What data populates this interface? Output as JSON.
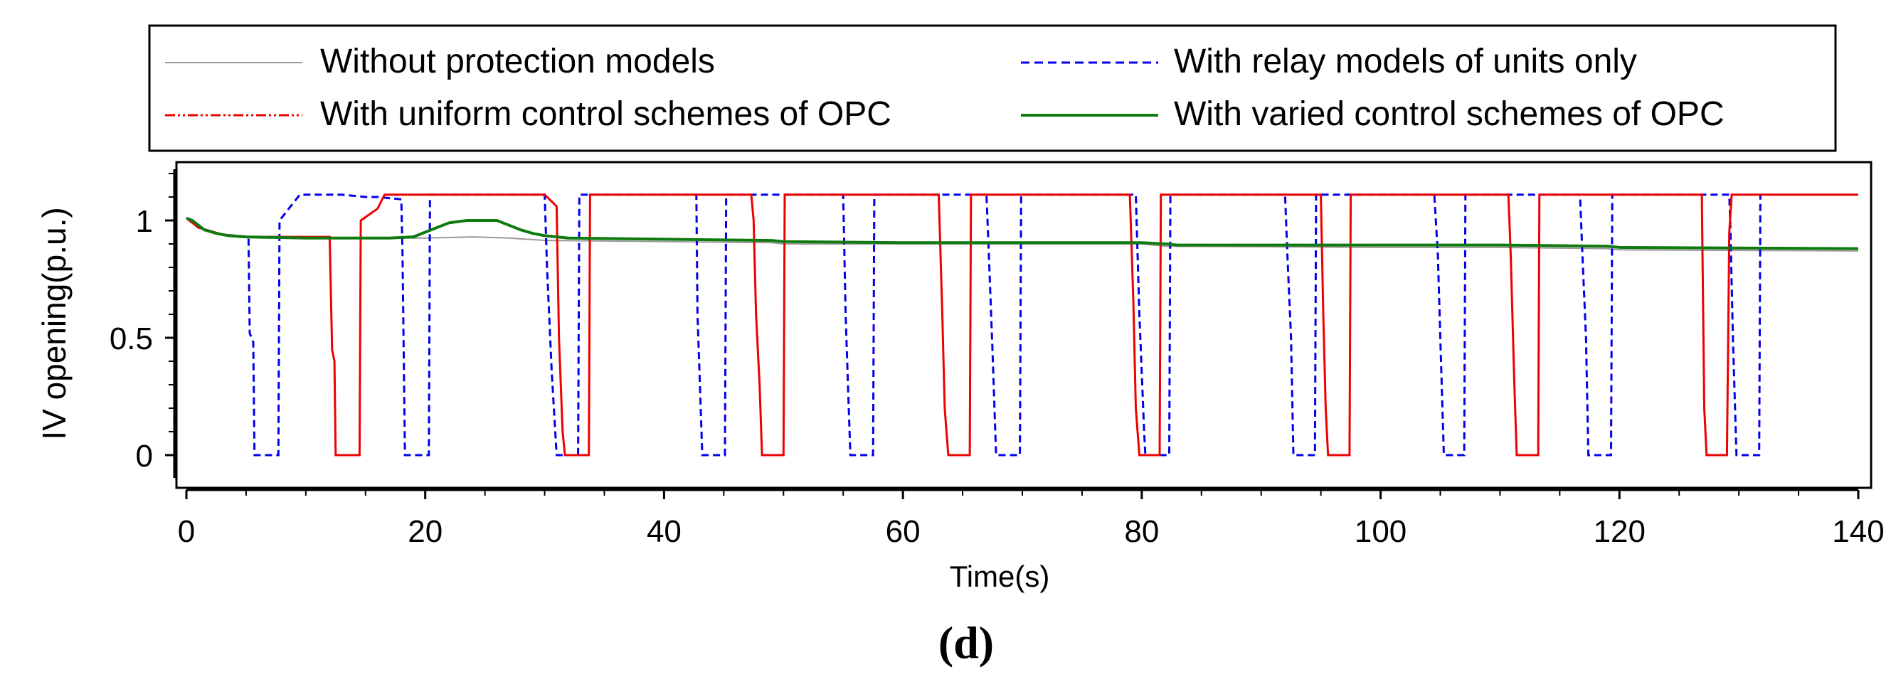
{
  "chart_data": {
    "type": "line",
    "title": "",
    "panel_label": "(d)",
    "xlabel": "Time(s)",
    "ylabel": "IV opening(p.u.)",
    "xlim": [
      0,
      140
    ],
    "ylim": [
      -0.15,
      1.25
    ],
    "xticks": [
      0,
      20,
      40,
      60,
      80,
      100,
      120,
      140
    ],
    "yticks": [
      0,
      0.5,
      1
    ],
    "ytick_labels": [
      "0",
      "0.5",
      "1"
    ],
    "grid": false,
    "legend_position": "top",
    "series": [
      {
        "name": "Without protection models",
        "color": "#9a9a9a",
        "dash": "solid",
        "points": [
          [
            0,
            1.01
          ],
          [
            0.6,
            0.99
          ],
          [
            1.5,
            0.96
          ],
          [
            2.5,
            0.945
          ],
          [
            3.5,
            0.935
          ],
          [
            5,
            0.93
          ],
          [
            12,
            0.925
          ],
          [
            20,
            0.925
          ],
          [
            24,
            0.93
          ],
          [
            27,
            0.925
          ],
          [
            30,
            0.915
          ],
          [
            40,
            0.91
          ],
          [
            49,
            0.905
          ],
          [
            50,
            0.9
          ],
          [
            60,
            0.9
          ],
          [
            70,
            0.9
          ],
          [
            80,
            0.9
          ],
          [
            82,
            0.89
          ],
          [
            100,
            0.885
          ],
          [
            110,
            0.885
          ],
          [
            119,
            0.88
          ],
          [
            120,
            0.875
          ],
          [
            140,
            0.87
          ]
        ]
      },
      {
        "name": "With relay models of units only",
        "color": "#0000ee",
        "dash": "10,6",
        "points": [
          [
            0,
            1.01
          ],
          [
            1,
            0.97
          ],
          [
            3,
            0.94
          ],
          [
            5.2,
            0.93
          ],
          [
            5.3,
            0.52
          ],
          [
            5.6,
            0.48
          ],
          [
            5.7,
            0
          ],
          [
            7.7,
            0
          ],
          [
            7.8,
            1.0
          ],
          [
            9.5,
            1.11
          ],
          [
            13,
            1.11
          ],
          [
            15,
            1.1
          ],
          [
            16,
            1.1
          ],
          [
            18,
            1.09
          ],
          [
            18.1,
            0.85
          ],
          [
            18.3,
            0
          ],
          [
            20.3,
            0
          ],
          [
            20.4,
            1.11
          ],
          [
            30,
            1.11
          ],
          [
            30.2,
            0.8
          ],
          [
            30.6,
            0.35
          ],
          [
            31,
            0
          ],
          [
            32.8,
            0
          ],
          [
            32.9,
            1.11
          ],
          [
            42.7,
            1.11
          ],
          [
            42.8,
            0.6
          ],
          [
            43,
            0.3
          ],
          [
            43.2,
            0
          ],
          [
            45.1,
            0
          ],
          [
            45.2,
            1.11
          ],
          [
            55,
            1.11
          ],
          [
            55.2,
            0.6
          ],
          [
            55.4,
            0.3
          ],
          [
            55.6,
            0
          ],
          [
            57.5,
            0
          ],
          [
            57.6,
            1.11
          ],
          [
            67,
            1.11
          ],
          [
            67.2,
            0.85
          ],
          [
            67.5,
            0.45
          ],
          [
            67.8,
            0
          ],
          [
            69.8,
            0
          ],
          [
            69.9,
            1.11
          ],
          [
            79.5,
            1.11
          ],
          [
            79.8,
            0.6
          ],
          [
            80.2,
            0.1
          ],
          [
            80.3,
            0
          ],
          [
            82.3,
            0
          ],
          [
            82.4,
            1.11
          ],
          [
            92,
            1.11
          ],
          [
            92.2,
            0.85
          ],
          [
            92.5,
            0.5
          ],
          [
            92.7,
            0
          ],
          [
            94.5,
            0
          ],
          [
            94.6,
            1.11
          ],
          [
            104.5,
            1.11
          ],
          [
            104.8,
            0.85
          ],
          [
            105,
            0.5
          ],
          [
            105.3,
            0
          ],
          [
            107,
            0
          ],
          [
            107.1,
            1.11
          ],
          [
            116.7,
            1.11
          ],
          [
            116.9,
            0.85
          ],
          [
            117.2,
            0.5
          ],
          [
            117.4,
            0
          ],
          [
            119.3,
            0
          ],
          [
            119.4,
            1.11
          ],
          [
            129.2,
            1.11
          ],
          [
            129.3,
            0.95
          ],
          [
            129.5,
            0.5
          ],
          [
            129.8,
            0
          ],
          [
            131.7,
            0
          ],
          [
            131.8,
            1.11
          ]
        ]
      },
      {
        "name": "With uniform control schemes of OPC",
        "color": "#ee0000",
        "dash": "solid",
        "points": [
          [
            0,
            1.01
          ],
          [
            1,
            0.97
          ],
          [
            3,
            0.94
          ],
          [
            5,
            0.93
          ],
          [
            12,
            0.93
          ],
          [
            12.2,
            0.45
          ],
          [
            12.4,
            0.4
          ],
          [
            12.5,
            0
          ],
          [
            14.5,
            0
          ],
          [
            14.6,
            1.0
          ],
          [
            16,
            1.05
          ],
          [
            16.6,
            1.11
          ],
          [
            30,
            1.11
          ],
          [
            31,
            1.06
          ],
          [
            31.2,
            0.5
          ],
          [
            31.5,
            0.1
          ],
          [
            31.7,
            0
          ],
          [
            33.7,
            0
          ],
          [
            33.8,
            1.11
          ],
          [
            47.3,
            1.11
          ],
          [
            47.5,
            1.0
          ],
          [
            47.7,
            0.6
          ],
          [
            48,
            0.3
          ],
          [
            48.2,
            0
          ],
          [
            50,
            0
          ],
          [
            50.1,
            1.11
          ],
          [
            63,
            1.11
          ],
          [
            63.3,
            0.6
          ],
          [
            63.5,
            0.2
          ],
          [
            63.8,
            0
          ],
          [
            65.6,
            0
          ],
          [
            65.7,
            1.11
          ],
          [
            79,
            1.11
          ],
          [
            79.3,
            0.65
          ],
          [
            79.5,
            0.2
          ],
          [
            79.8,
            0
          ],
          [
            81.5,
            0
          ],
          [
            81.6,
            1.11
          ],
          [
            95,
            1.11
          ],
          [
            95.2,
            0.6
          ],
          [
            95.4,
            0.2
          ],
          [
            95.6,
            0
          ],
          [
            97.4,
            0
          ],
          [
            97.5,
            1.11
          ],
          [
            110.7,
            1.11
          ],
          [
            110.9,
            0.85
          ],
          [
            111.2,
            0.3
          ],
          [
            111.4,
            0
          ],
          [
            113.2,
            0
          ],
          [
            113.3,
            1.11
          ],
          [
            126.9,
            1.11
          ],
          [
            127.1,
            0.2
          ],
          [
            127.3,
            0
          ],
          [
            129,
            0
          ],
          [
            129.2,
            0.95
          ],
          [
            129.4,
            1.11
          ],
          [
            140,
            1.11
          ]
        ]
      },
      {
        "name": "With varied control schemes of OPC",
        "color": "#0f7a0f",
        "dash": "solid",
        "points": [
          [
            0,
            1.01
          ],
          [
            0.5,
            1.0
          ],
          [
            1,
            0.98
          ],
          [
            1.5,
            0.96
          ],
          [
            2.5,
            0.945
          ],
          [
            3.5,
            0.935
          ],
          [
            5,
            0.93
          ],
          [
            10,
            0.925
          ],
          [
            17,
            0.925
          ],
          [
            19,
            0.93
          ],
          [
            20,
            0.95
          ],
          [
            21,
            0.97
          ],
          [
            22,
            0.99
          ],
          [
            23.5,
            1.0
          ],
          [
            26,
            1.0
          ],
          [
            27,
            0.98
          ],
          [
            28,
            0.96
          ],
          [
            29,
            0.945
          ],
          [
            30,
            0.935
          ],
          [
            32,
            0.925
          ],
          [
            40,
            0.92
          ],
          [
            49,
            0.915
          ],
          [
            50,
            0.91
          ],
          [
            60,
            0.905
          ],
          [
            70,
            0.905
          ],
          [
            80,
            0.905
          ],
          [
            82,
            0.9
          ],
          [
            83,
            0.895
          ],
          [
            100,
            0.895
          ],
          [
            110,
            0.895
          ],
          [
            119,
            0.89
          ],
          [
            120,
            0.885
          ],
          [
            140,
            0.88
          ]
        ]
      }
    ]
  }
}
